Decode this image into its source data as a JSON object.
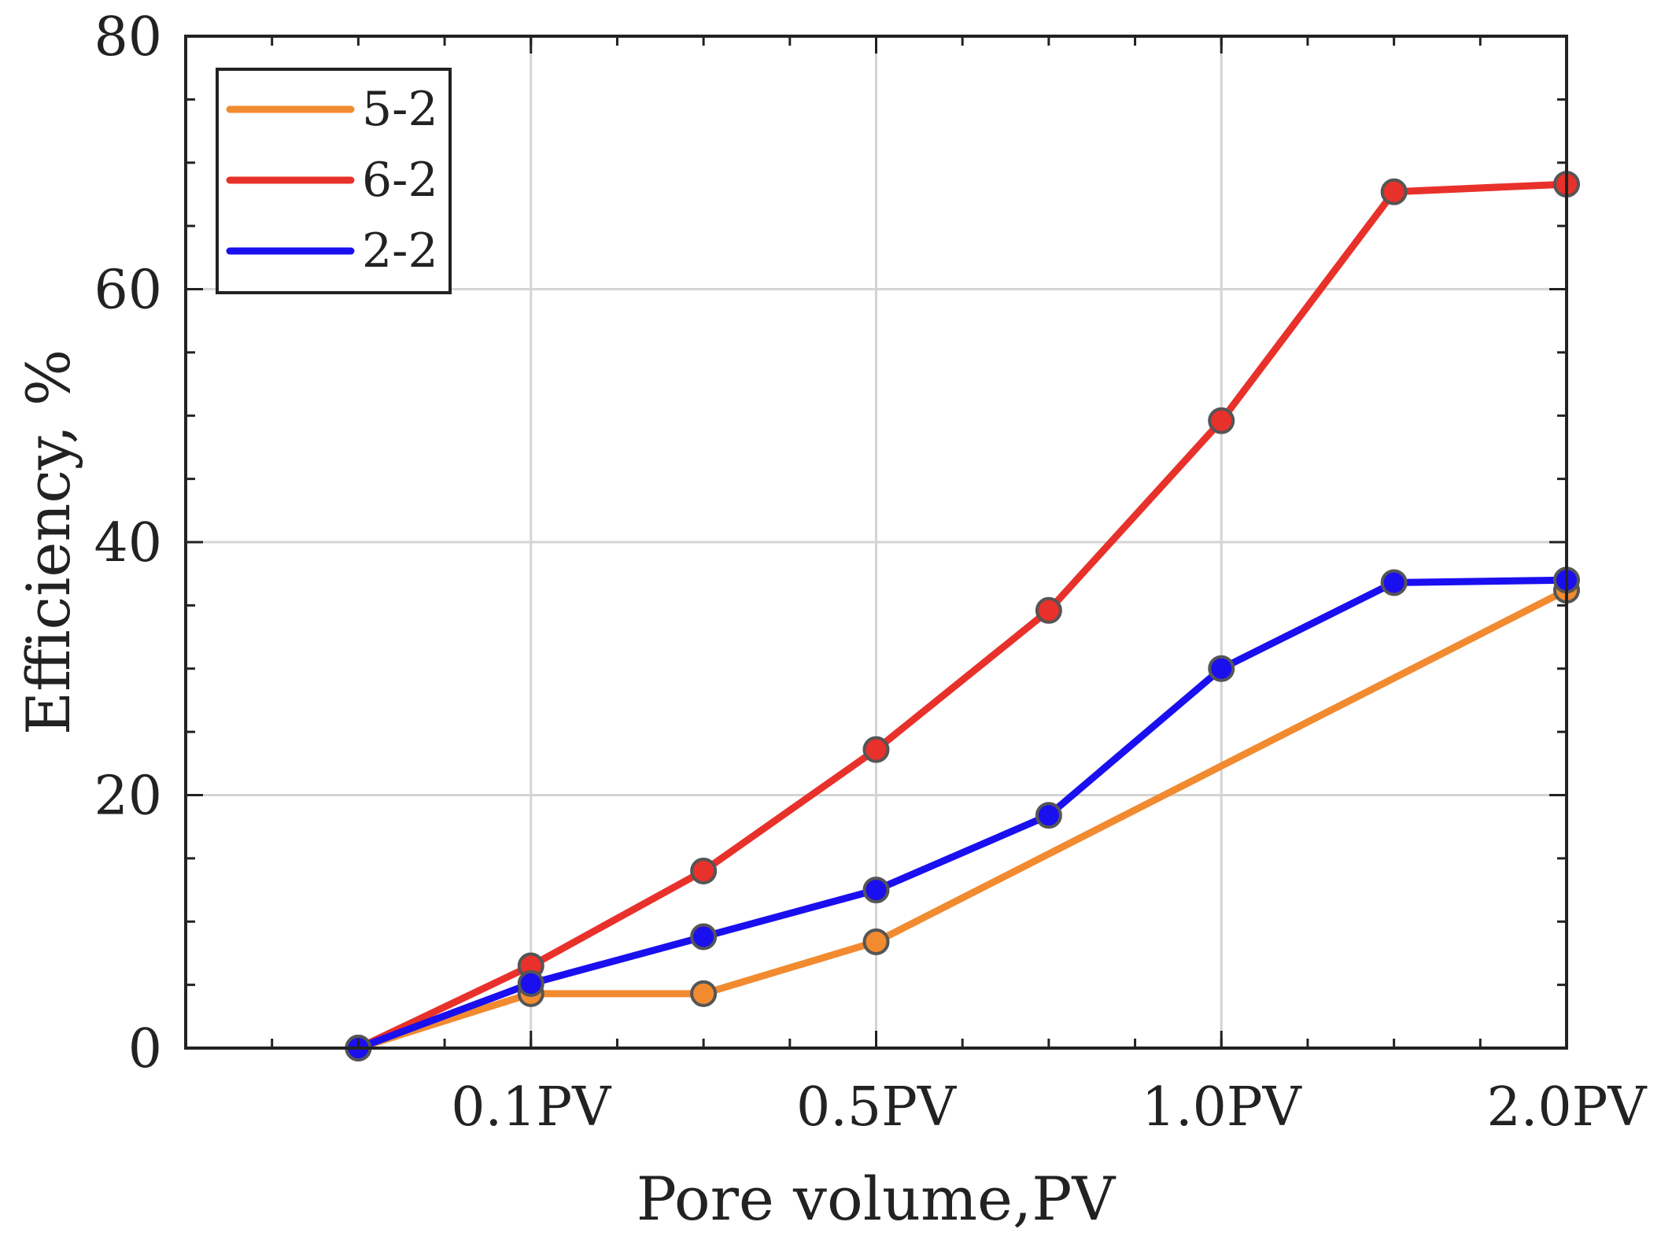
{
  "chart_data": {
    "type": "line",
    "xlabel": "Pore volume,PV",
    "ylabel": "Efficiency, %",
    "xlim": [
      0,
      8
    ],
    "ylim": [
      0,
      80
    ],
    "x_ticks": [
      {
        "x": 2,
        "label": "0.1PV"
      },
      {
        "x": 4,
        "label": "0.5PV"
      },
      {
        "x": 6,
        "label": "1.0PV"
      },
      {
        "x": 8,
        "label": "2.0PV"
      }
    ],
    "x_minor_ticks": [
      0.5,
      1,
      1.5,
      2,
      2.5,
      3,
      3.5,
      4,
      4.5,
      5,
      5.5,
      6,
      6.5,
      7,
      7.5
    ],
    "y_ticks": [
      0,
      20,
      40,
      60,
      80
    ],
    "y_minor_ticks": [
      5,
      10,
      15,
      25,
      30,
      35,
      45,
      50,
      55,
      65,
      70,
      75
    ],
    "grid": true,
    "legend_position": "top-left",
    "series": [
      {
        "name": "5-2",
        "color": "#F28A30",
        "points": [
          {
            "x": 1,
            "y": 0,
            "marker": true
          },
          {
            "x": 2,
            "y": 4.3,
            "marker": true
          },
          {
            "x": 3,
            "y": 4.3,
            "marker": true
          },
          {
            "x": 4,
            "y": 8.4,
            "marker": true
          },
          {
            "x": 6,
            "y": 22.3,
            "marker": false
          },
          {
            "x": 8,
            "y": 36.2,
            "marker": true
          }
        ]
      },
      {
        "name": "6-2",
        "color": "#E8312A",
        "points": [
          {
            "x": 1,
            "y": 0,
            "marker": true
          },
          {
            "x": 2,
            "y": 6.5,
            "marker": true
          },
          {
            "x": 3,
            "y": 14.0,
            "marker": true
          },
          {
            "x": 4,
            "y": 23.6,
            "marker": true
          },
          {
            "x": 5,
            "y": 34.6,
            "marker": true
          },
          {
            "x": 6,
            "y": 49.6,
            "marker": true
          },
          {
            "x": 7,
            "y": 67.7,
            "marker": true
          },
          {
            "x": 8,
            "y": 68.3,
            "marker": true
          }
        ]
      },
      {
        "name": "2-2",
        "color": "#1A0FEF",
        "points": [
          {
            "x": 1,
            "y": 0,
            "marker": true
          },
          {
            "x": 2,
            "y": 5.1,
            "marker": true
          },
          {
            "x": 3,
            "y": 8.8,
            "marker": true
          },
          {
            "x": 4,
            "y": 12.5,
            "marker": true
          },
          {
            "x": 5,
            "y": 18.4,
            "marker": true
          },
          {
            "x": 6,
            "y": 30.0,
            "marker": true
          },
          {
            "x": 7,
            "y": 36.8,
            "marker": true
          },
          {
            "x": 8,
            "y": 37.0,
            "marker": true
          }
        ]
      }
    ]
  }
}
